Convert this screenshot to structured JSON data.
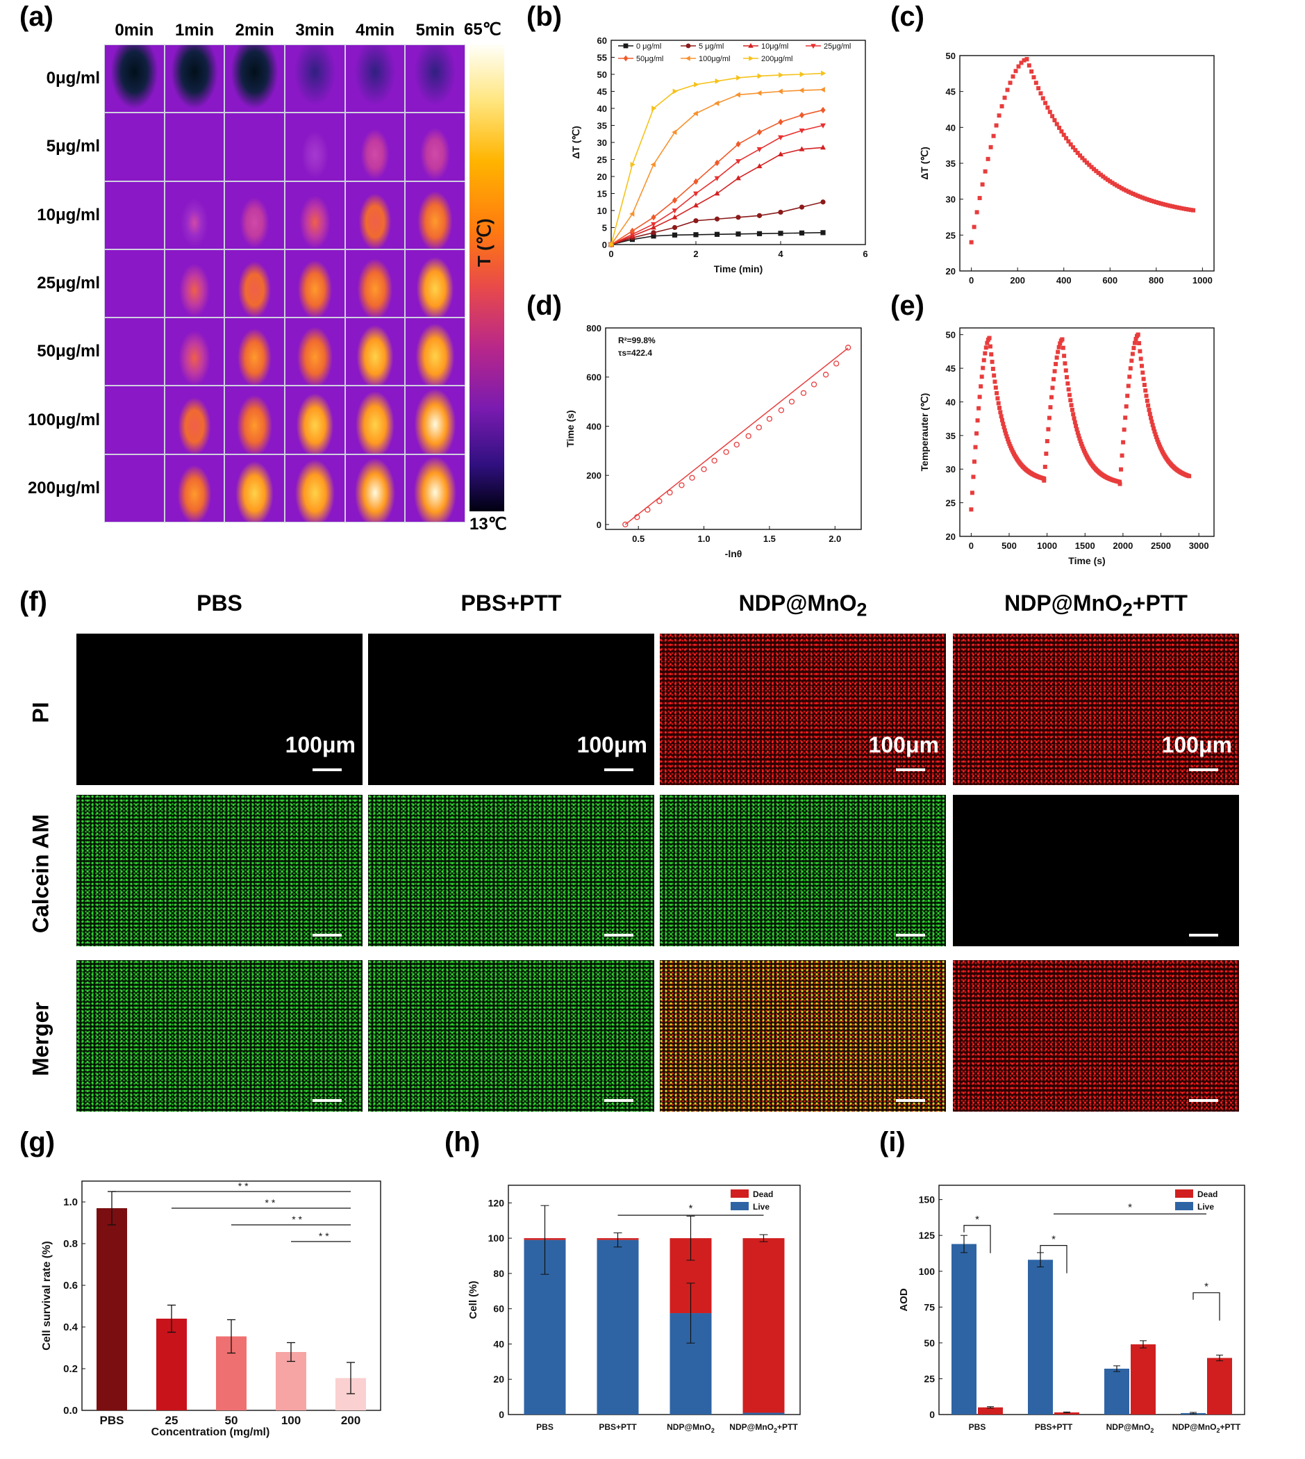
{
  "panel_labels": {
    "a": "(a)",
    "b": "(b)",
    "c": "(c)",
    "d": "(d)",
    "e": "(e)",
    "f": "(f)",
    "g": "(g)",
    "h": "(h)",
    "i": "(i)"
  },
  "thermal": {
    "times": [
      "0min",
      "1min",
      "2min",
      "3min",
      "4min",
      "5min"
    ],
    "concentrations": [
      "0μg/ml",
      "5μg/ml",
      "10μg/ml",
      "25μg/ml",
      "50μg/ml",
      "100μg/ml",
      "200μg/ml"
    ],
    "colorbar_max": "65℃",
    "colorbar_min": "13℃",
    "colorbar_label": "T (℃)",
    "intensity": [
      [
        0,
        0,
        0,
        0,
        0,
        0
      ],
      [
        0,
        0,
        0.02,
        0.05,
        0.18,
        0.25
      ],
      [
        0,
        0.12,
        0.2,
        0.3,
        0.42,
        0.55
      ],
      [
        0,
        0.3,
        0.42,
        0.5,
        0.58,
        0.68
      ],
      [
        0,
        0.36,
        0.48,
        0.58,
        0.68,
        0.78
      ],
      [
        0,
        0.44,
        0.58,
        0.68,
        0.8,
        0.94
      ],
      [
        0,
        0.5,
        0.72,
        0.82,
        0.9,
        1.0
      ]
    ]
  },
  "fluor": {
    "columns": [
      "PBS",
      "PBS+PTT",
      "NDP@MnO",
      "NDP@MnO"
    ],
    "subscript": "2",
    "ptt_suffix": "+PTT",
    "rows": [
      "PI",
      "Calcein AM",
      "Merger"
    ],
    "scale_label": "100μm",
    "cells": [
      [
        "dark",
        "dark",
        "red",
        "red"
      ],
      [
        "green",
        "green",
        "green",
        "dark"
      ],
      [
        "green",
        "green",
        "yellow",
        "red"
      ]
    ]
  },
  "chart_data": [
    {
      "id": "b",
      "type": "line",
      "title": "",
      "xlabel": "Time (min)",
      "ylabel": "ΔT (℃)",
      "xlim": [
        0,
        6
      ],
      "ylim": [
        0,
        60
      ],
      "xticks": [
        0,
        2,
        4,
        6
      ],
      "yticks": [
        0,
        5,
        10,
        15,
        20,
        25,
        30,
        35,
        40,
        45,
        50,
        55,
        60
      ],
      "x": [
        0,
        0.5,
        1,
        1.5,
        2,
        2.5,
        3,
        3.5,
        4,
        4.5,
        5
      ],
      "series": [
        {
          "name": "0 μg/ml",
          "color": "#1a1a1a",
          "marker": "square",
          "values": [
            0,
            1.5,
            2.5,
            2.8,
            2.9,
            3.0,
            3.1,
            3.2,
            3.3,
            3.4,
            3.5
          ]
        },
        {
          "name": "5 μg/ml",
          "color": "#8b1a1a",
          "marker": "circle",
          "values": [
            0,
            2.0,
            3.5,
            5.0,
            7.0,
            7.5,
            8.0,
            8.5,
            9.5,
            11.0,
            12.5
          ]
        },
        {
          "name": "10μg/ml",
          "color": "#d42020",
          "marker": "triangle",
          "values": [
            0,
            2.5,
            5.0,
            8.0,
            11.5,
            15.0,
            19.5,
            23.0,
            26.5,
            28.0,
            28.5
          ]
        },
        {
          "name": "25μg/ml",
          "color": "#e83030",
          "marker": "tri-down",
          "values": [
            0,
            3.0,
            6.0,
            10.0,
            15.0,
            19.5,
            24.5,
            28.0,
            31.5,
            33.5,
            35.0
          ]
        },
        {
          "name": "50μg/ml",
          "color": "#ef5a2a",
          "marker": "diamond",
          "values": [
            0,
            4.0,
            8.0,
            13.0,
            18.5,
            24.0,
            29.5,
            33.0,
            36.0,
            38.0,
            39.5
          ]
        },
        {
          "name": "100μg/ml",
          "color": "#f7922e",
          "marker": "tri-left",
          "values": [
            0,
            9.0,
            23.5,
            33.0,
            38.5,
            41.5,
            44.0,
            44.5,
            45.0,
            45.3,
            45.5
          ]
        },
        {
          "name": "200μg/ml",
          "color": "#f5c21a",
          "marker": "tri-right",
          "values": [
            0,
            23.5,
            40.0,
            45.0,
            47.0,
            48.0,
            49.0,
            49.5,
            49.8,
            50.0,
            50.3
          ]
        }
      ]
    },
    {
      "id": "c",
      "type": "scatter",
      "title": "",
      "xlabel": "Time (s)",
      "ylabel": "ΔT (℃)",
      "xlim": [
        -50,
        1050
      ],
      "ylim": [
        20,
        50
      ],
      "xticks": [
        0,
        200,
        400,
        600,
        800,
        1000
      ],
      "yticks": [
        20,
        25,
        30,
        35,
        40,
        45,
        50
      ],
      "color": "#e83c3c",
      "heating": {
        "x_start": 0,
        "x_end": 240,
        "y_start": 24,
        "y_end": 49.5
      },
      "cooling": {
        "x_start": 240,
        "x_end": 960,
        "y_start": 49.5,
        "y_plateau": 27.2,
        "tau": 250
      }
    },
    {
      "id": "d",
      "type": "scatter",
      "title": "",
      "xlabel": "-lnθ",
      "ylabel": "Time (s)",
      "xlim": [
        0.25,
        2.2
      ],
      "ylim": [
        -20,
        800
      ],
      "xticks": [
        0.5,
        1.0,
        1.5,
        2.0
      ],
      "yticks": [
        0,
        200,
        400,
        600,
        800
      ],
      "annotation": [
        "R²=99.8%",
        "τs=422.4"
      ],
      "color": "#e83c3c",
      "x": [
        0.4,
        0.49,
        0.57,
        0.66,
        0.74,
        0.83,
        0.91,
        1.0,
        1.08,
        1.17,
        1.25,
        1.34,
        1.42,
        1.5,
        1.59,
        1.67,
        1.76,
        1.84,
        1.93,
        2.01,
        2.1
      ],
      "values": [
        0,
        30,
        60,
        95,
        130,
        160,
        190,
        225,
        260,
        295,
        325,
        360,
        395,
        430,
        465,
        500,
        535,
        570,
        610,
        655,
        720
      ],
      "fit": {
        "slope": 422.4,
        "intercept": -169
      }
    },
    {
      "id": "e",
      "type": "scatter",
      "title": "",
      "xlabel": "Time (s)",
      "ylabel": "Temperauter (℃)",
      "xlim": [
        -150,
        3200
      ],
      "ylim": [
        20,
        51
      ],
      "xticks": [
        0,
        500,
        1000,
        1500,
        2000,
        2500,
        3000
      ],
      "yticks": [
        20,
        25,
        30,
        35,
        40,
        45,
        50
      ],
      "color": "#e83c3c",
      "cycles": [
        {
          "start": 0,
          "peak_t": 240,
          "end": 960,
          "y0": 24,
          "peak": 49.5,
          "tail": 28.0
        },
        {
          "start": 960,
          "peak_t": 1200,
          "end": 1960,
          "y0": 28.3,
          "peak": 49.3,
          "tail": 27.6
        },
        {
          "start": 1960,
          "peak_t": 2200,
          "end": 2880,
          "y0": 27.8,
          "peak": 50.0,
          "tail": 28.2
        }
      ]
    },
    {
      "id": "g",
      "type": "bar",
      "title": "",
      "xlabel": "Concentration (mg/ml)",
      "ylabel": "Cell survival rate (%)",
      "ylim": [
        0,
        1.1
      ],
      "yticks": [
        0.0,
        0.2,
        0.4,
        0.6,
        0.8,
        1.0
      ],
      "categories": [
        "PBS",
        "25",
        "50",
        "100",
        "200"
      ],
      "values": [
        0.97,
        0.44,
        0.355,
        0.28,
        0.155
      ],
      "errors": [
        0.08,
        0.065,
        0.08,
        0.045,
        0.075
      ],
      "colors": [
        "#7b0e10",
        "#c8131a",
        "#ef7070",
        "#f6a4a4",
        "#fbd0d0"
      ],
      "significance": [
        {
          "from": 0,
          "to": 4,
          "y": 1.05,
          "label": "* *"
        },
        {
          "from": 1,
          "to": 4,
          "y": 0.97,
          "label": "* *"
        },
        {
          "from": 2,
          "to": 4,
          "y": 0.89,
          "label": "* *"
        },
        {
          "from": 3,
          "to": 4,
          "y": 0.81,
          "label": "* *"
        }
      ]
    },
    {
      "id": "h",
      "type": "bar",
      "title": "",
      "xlabel": "",
      "ylabel": "Cell (%)",
      "ylim": [
        0,
        130
      ],
      "yticks": [
        0,
        20,
        40,
        60,
        80,
        100,
        120
      ],
      "categories": [
        "PBS",
        "PBS+PTT",
        "NDP@MnO",
        "NDP@MnO"
      ],
      "category_subscript": "2",
      "category_suffix": [
        "",
        "",
        "",
        "+PTT"
      ],
      "series": [
        {
          "name": "Live",
          "color": "#2e64a4",
          "values": [
            99,
            99,
            57.5,
            1
          ],
          "errors": [
            19.5,
            4,
            17,
            0
          ]
        },
        {
          "name": "Dead",
          "color": "#d11f1f",
          "values": [
            1,
            1,
            42.5,
            99
          ],
          "errors": [
            0,
            0,
            12.5,
            2
          ]
        }
      ],
      "significance": [
        {
          "from": 1,
          "to": 3,
          "y": 113,
          "label": "*"
        }
      ]
    },
    {
      "id": "i",
      "type": "bar",
      "title": "",
      "xlabel": "",
      "ylabel": "AOD",
      "ylim": [
        0,
        160
      ],
      "yticks": [
        0,
        25,
        50,
        75,
        100,
        125,
        150
      ],
      "categories": [
        "PBS",
        "PBS+PTT",
        "NDP@MnO",
        "NDP@MnO"
      ],
      "category_subscript": "2",
      "category_suffix": [
        "",
        "",
        "",
        "+PTT"
      ],
      "series": [
        {
          "name": "Live",
          "color": "#2e64a4",
          "values": [
            119,
            108,
            32,
            1
          ],
          "errors": [
            6,
            5,
            2,
            0.5
          ]
        },
        {
          "name": "Dead",
          "color": "#d11f1f",
          "values": [
            5,
            1.5,
            49,
            39.5
          ],
          "errors": [
            0.5,
            0.3,
            2.5,
            2
          ]
        }
      ],
      "significance": [
        {
          "type": "pair",
          "group": 0,
          "y": 132,
          "label": "*"
        },
        {
          "type": "pair",
          "group": 1,
          "y": 118,
          "label": "*"
        },
        {
          "type": "span",
          "from": 1,
          "to": 3,
          "y": 140,
          "label": "*"
        },
        {
          "type": "pair",
          "group": 3,
          "y": 85,
          "label": "*"
        }
      ]
    }
  ]
}
